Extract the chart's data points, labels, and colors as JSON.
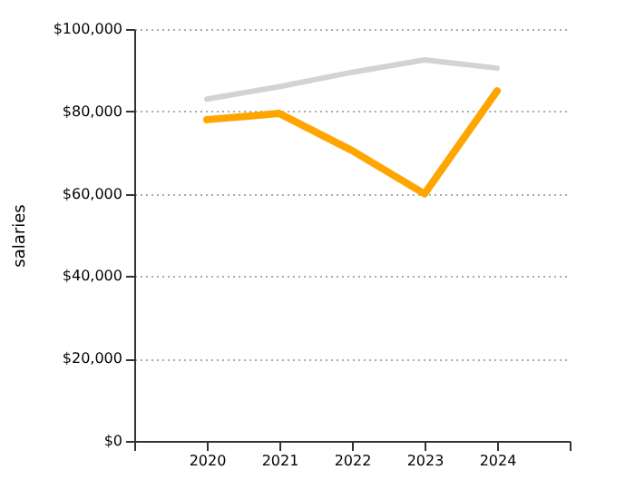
{
  "chart_data": {
    "type": "line",
    "ylabel": "salaries",
    "x": [
      2020,
      2021,
      2022,
      2023,
      2024
    ],
    "series": [
      {
        "color": "#d3d3d3",
        "values": [
          83000,
          86000,
          89500,
          92500,
          90500
        ]
      },
      {
        "color": "#ffa500",
        "values": [
          78000,
          79500,
          70500,
          60000,
          85000
        ]
      }
    ],
    "xlim": [
      2019,
      2025
    ],
    "xticks": [
      {
        "value": 2019,
        "label": null
      },
      2020,
      2021,
      2022,
      2023,
      2024,
      {
        "value": 2025,
        "label": null
      }
    ],
    "ylim": [
      0,
      100000
    ],
    "yticks": [
      {
        "value": 0,
        "label": "$0"
      },
      {
        "value": 20000,
        "label": "$20,000"
      },
      {
        "value": 40000,
        "label": "$40,000"
      },
      {
        "value": 60000,
        "label": "$60,000"
      },
      {
        "value": 80000,
        "label": "$80,000"
      },
      {
        "value": 100000,
        "label": "$100,000"
      }
    ],
    "grid": "y",
    "marker": "none",
    "line_style": "solid"
  }
}
